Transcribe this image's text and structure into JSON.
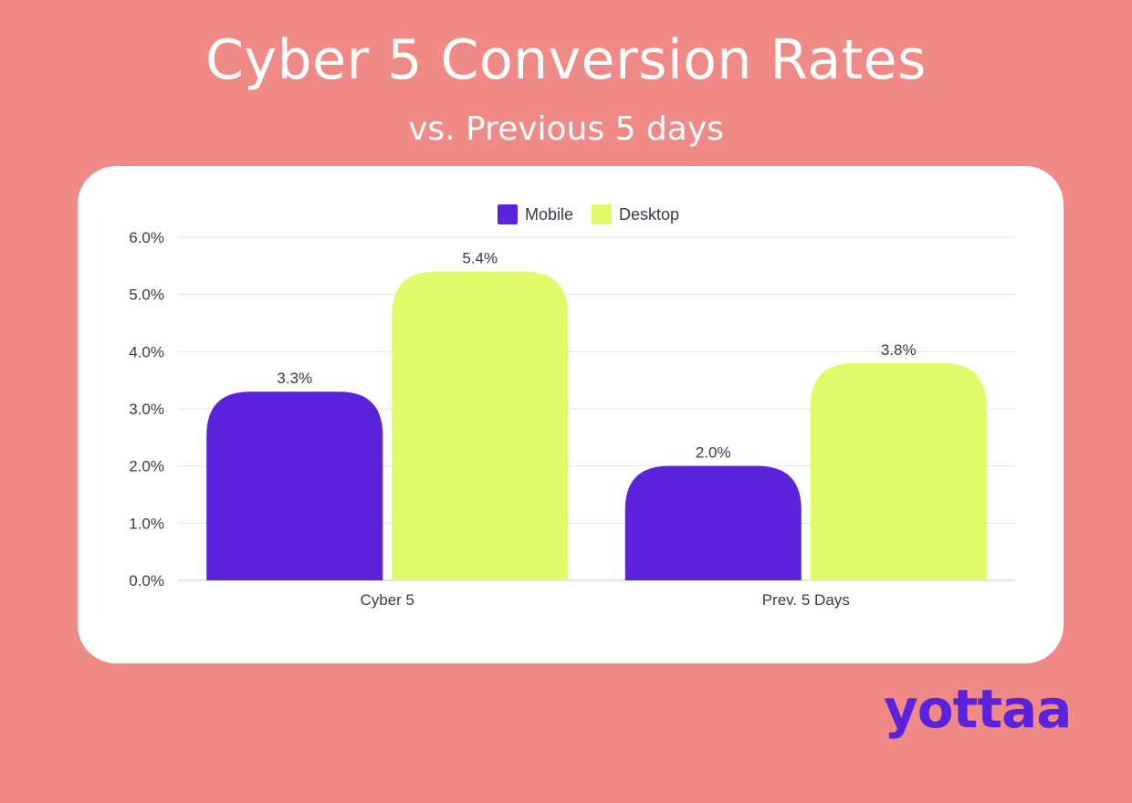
{
  "header": {
    "title": "Cyber 5 Conversion Rates",
    "subtitle": "vs. Previous 5 days"
  },
  "brand": {
    "logo_text": "yottaa",
    "logo_color": "#5b22dc"
  },
  "colors": {
    "background": "#f08a86",
    "card": "#ffffff",
    "mobile": "#5b22dc",
    "desktop": "#e0fb6a",
    "grid": "#e3e3e3",
    "axis_text": "#3a3a4a"
  },
  "chart_data": {
    "type": "bar",
    "categories": [
      "Cyber 5",
      "Prev. 5 Days"
    ],
    "series": [
      {
        "name": "Mobile",
        "values": [
          3.3,
          2.0
        ],
        "labels": [
          "3.3%",
          "2.0%"
        ],
        "color": "#5b22dc"
      },
      {
        "name": "Desktop",
        "values": [
          5.4,
          3.8
        ],
        "labels": [
          "5.4%",
          "3.8%"
        ],
        "color": "#e0fb6a"
      }
    ],
    "title": "Cyber 5 Conversion Rates",
    "subtitle": "vs. Previous 5 days",
    "xlabel": "",
    "ylabel": "",
    "ylim": [
      0,
      6
    ],
    "yticks": [
      "0.0%",
      "1.0%",
      "2.0%",
      "3.0%",
      "4.0%",
      "5.0%",
      "6.0%"
    ],
    "grid": true,
    "legend": "top"
  }
}
